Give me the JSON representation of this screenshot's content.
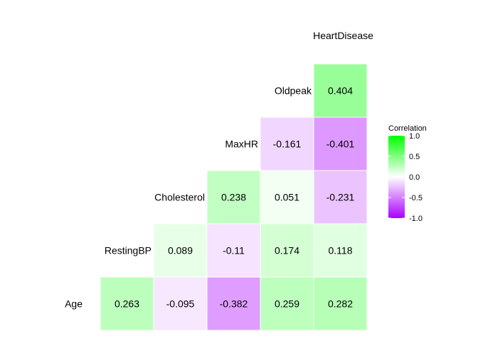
{
  "chart_data": {
    "type": "heatmap",
    "variables": [
      "Age",
      "RestingBP",
      "Cholesterol",
      "MaxHR",
      "Oldpeak",
      "HeartDisease"
    ],
    "cells": [
      {
        "row": "Age",
        "col": "RestingBP",
        "value": 0.263,
        "label": "0.263"
      },
      {
        "row": "Age",
        "col": "Cholesterol",
        "value": -0.095,
        "label": "-0.095"
      },
      {
        "row": "Age",
        "col": "MaxHR",
        "value": -0.382,
        "label": "-0.382"
      },
      {
        "row": "Age",
        "col": "Oldpeak",
        "value": 0.259,
        "label": "0.259"
      },
      {
        "row": "Age",
        "col": "HeartDisease",
        "value": 0.282,
        "label": "0.282"
      },
      {
        "row": "RestingBP",
        "col": "Cholesterol",
        "value": 0.089,
        "label": "0.089"
      },
      {
        "row": "RestingBP",
        "col": "MaxHR",
        "value": -0.11,
        "label": "-0.11"
      },
      {
        "row": "RestingBP",
        "col": "Oldpeak",
        "value": 0.174,
        "label": "0.174"
      },
      {
        "row": "RestingBP",
        "col": "HeartDisease",
        "value": 0.118,
        "label": "0.118"
      },
      {
        "row": "Cholesterol",
        "col": "MaxHR",
        "value": 0.238,
        "label": "0.238"
      },
      {
        "row": "Cholesterol",
        "col": "Oldpeak",
        "value": 0.051,
        "label": "0.051"
      },
      {
        "row": "Cholesterol",
        "col": "HeartDisease",
        "value": -0.231,
        "label": "-0.231"
      },
      {
        "row": "MaxHR",
        "col": "Oldpeak",
        "value": -0.161,
        "label": "-0.161"
      },
      {
        "row": "MaxHR",
        "col": "HeartDisease",
        "value": -0.401,
        "label": "-0.401"
      },
      {
        "row": "Oldpeak",
        "col": "HeartDisease",
        "value": 0.404,
        "label": "0.404"
      }
    ],
    "legend": {
      "title": "Correlation",
      "placement": "right",
      "range": [
        -1,
        1
      ],
      "ticks": [
        {
          "value": 1.0,
          "label": "1.0"
        },
        {
          "value": 0.5,
          "label": "0.5"
        },
        {
          "value": 0.0,
          "label": "0.0"
        },
        {
          "value": -0.5,
          "label": "-0.5"
        },
        {
          "value": -1.0,
          "label": "-1.0"
        }
      ],
      "colors": {
        "high": "#00ff00",
        "mid": "#ffffff",
        "low": "#aa00ff"
      }
    },
    "grid": false
  }
}
